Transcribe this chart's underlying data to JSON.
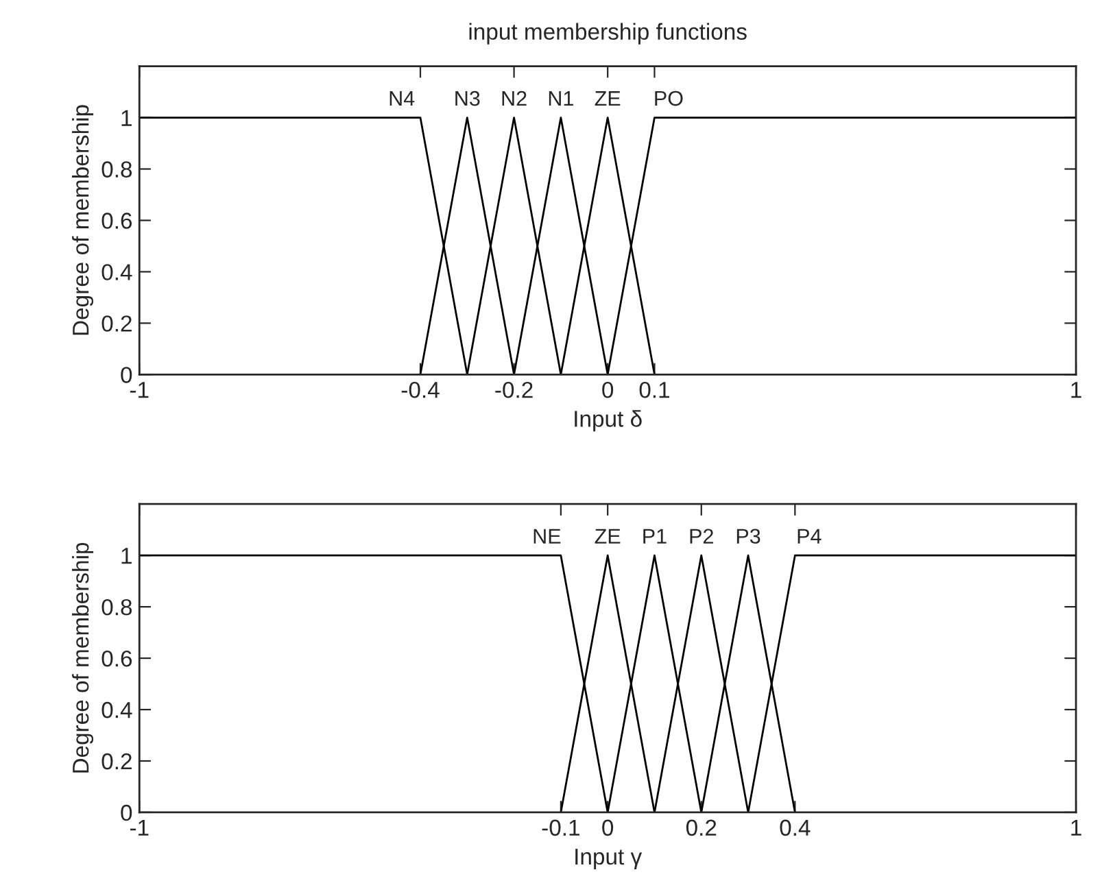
{
  "chart_data": [
    {
      "type": "line",
      "title": "input membership functions",
      "xlabel": "Input δ",
      "ylabel": "Degree of membership",
      "xlim": [
        -1,
        1
      ],
      "xticks": [
        -1,
        -0.4,
        -0.2,
        0,
        0.1,
        1
      ],
      "ylim": [
        0,
        1.2
      ],
      "yticks": [
        0,
        0.2,
        0.4,
        0.6,
        0.8,
        1
      ],
      "grid": false,
      "marker": "none",
      "line_style": "solid",
      "series": [
        {
          "color": "#000000",
          "x": [
            -1,
            -0.4,
            -0.3
          ],
          "values": [
            1,
            1,
            0
          ]
        },
        {
          "color": "#000000",
          "x": [
            -0.4,
            -0.3,
            -0.2
          ],
          "values": [
            0,
            1,
            0
          ]
        },
        {
          "color": "#000000",
          "x": [
            -0.3,
            -0.2,
            -0.1
          ],
          "values": [
            0,
            1,
            0
          ]
        },
        {
          "color": "#000000",
          "x": [
            -0.2,
            -0.1,
            0
          ],
          "values": [
            0,
            1,
            0
          ]
        },
        {
          "color": "#000000",
          "x": [
            -0.1,
            0,
            0.1
          ],
          "values": [
            0,
            1,
            0
          ]
        },
        {
          "color": "#000000",
          "x": [
            0,
            0.1,
            1
          ],
          "values": [
            0,
            1,
            1
          ]
        }
      ],
      "annotations": [
        {
          "text": "N4",
          "x": -0.44,
          "y": 1
        },
        {
          "text": "N3",
          "x": -0.3,
          "y": 1
        },
        {
          "text": "N2",
          "x": -0.2,
          "y": 1
        },
        {
          "text": "N1",
          "x": -0.1,
          "y": 1
        },
        {
          "text": "ZE",
          "x": 0,
          "y": 1
        },
        {
          "text": "PO",
          "x": 0.13,
          "y": 1
        }
      ]
    },
    {
      "type": "line",
      "xlabel": "Input γ",
      "ylabel": "Degree of membership",
      "xlim": [
        -1,
        1
      ],
      "xticks": [
        -1,
        -0.1,
        0,
        0.2,
        0.4,
        1
      ],
      "ylim": [
        0,
        1.2
      ],
      "yticks": [
        0,
        0.2,
        0.4,
        0.6,
        0.8,
        1
      ],
      "grid": false,
      "marker": "none",
      "line_style": "solid",
      "series": [
        {
          "color": "#000000",
          "x": [
            -1,
            -0.1,
            0
          ],
          "values": [
            1,
            1,
            0
          ]
        },
        {
          "color": "#000000",
          "x": [
            -0.1,
            0,
            0.1
          ],
          "values": [
            0,
            1,
            0
          ]
        },
        {
          "color": "#000000",
          "x": [
            0,
            0.1,
            0.2
          ],
          "values": [
            0,
            1,
            0
          ]
        },
        {
          "color": "#000000",
          "x": [
            0.1,
            0.2,
            0.3
          ],
          "values": [
            0,
            1,
            0
          ]
        },
        {
          "color": "#000000",
          "x": [
            0.2,
            0.3,
            0.4
          ],
          "values": [
            0,
            1,
            0
          ]
        },
        {
          "color": "#000000",
          "x": [
            0.3,
            0.4,
            1
          ],
          "values": [
            0,
            1,
            1
          ]
        }
      ],
      "annotations": [
        {
          "text": "NE",
          "x": -0.13,
          "y": 1
        },
        {
          "text": "ZE",
          "x": 0,
          "y": 1
        },
        {
          "text": "P1",
          "x": 0.1,
          "y": 1
        },
        {
          "text": "P2",
          "x": 0.2,
          "y": 1
        },
        {
          "text": "P3",
          "x": 0.3,
          "y": 1
        },
        {
          "text": "P4",
          "x": 0.43,
          "y": 1
        }
      ]
    }
  ]
}
